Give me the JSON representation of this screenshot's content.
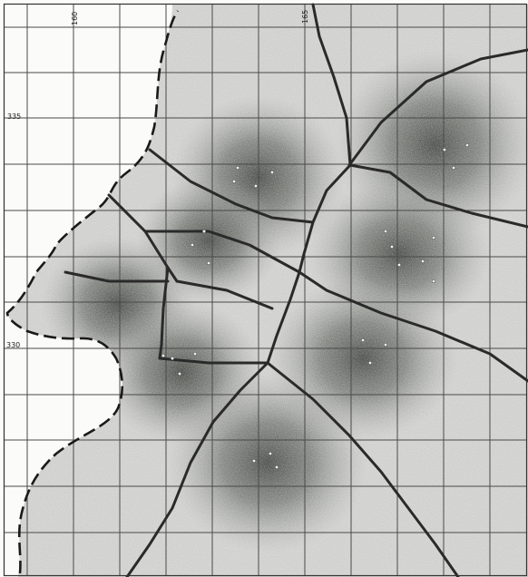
{
  "grid_labels": {
    "top": [
      "160",
      "165"
    ],
    "left": [
      "335",
      "330"
    ]
  },
  "colors": {
    "paper": "#fbfbfa",
    "territory_light": "#d2d2d0",
    "territory_mid": "#8d8f8b",
    "territory_dark": "#4f524d",
    "boundary": "#2a2a2a",
    "grid": "#4a4a4a",
    "coast": "#1a1a1a"
  },
  "territories": [
    {
      "id": "t1",
      "centers": [
        [
          2,
          1
        ],
        [
          2,
          0
        ]
      ]
    },
    {
      "id": "t2",
      "centers": [
        [
          7,
          3
        ],
        [
          8,
          3
        ],
        [
          7,
          4
        ]
      ]
    },
    {
      "id": "t3",
      "centers": [
        [
          3,
          3
        ],
        [
          4,
          4
        ],
        [
          3,
          5
        ]
      ]
    },
    {
      "id": "t4",
      "centers": [
        [
          10,
          4
        ],
        [
          11,
          5
        ],
        [
          10,
          6
        ],
        [
          12,
          5
        ]
      ]
    },
    {
      "id": "t5",
      "centers": [
        [
          -4,
          2
        ],
        [
          -3,
          3
        ]
      ]
    },
    {
      "id": "t6",
      "centers": [
        [
          -6,
          2
        ],
        [
          -5,
          3
        ],
        [
          -4,
          1
        ]
      ]
    },
    {
      "id": "t7",
      "centers": [
        [
          5,
          2
        ],
        [
          6,
          3
        ],
        [
          5,
          4
        ]
      ]
    },
    {
      "id": "t8",
      "centers": [
        [
          3,
          2
        ],
        [
          4,
          3
        ],
        [
          3,
          4
        ]
      ]
    }
  ]
}
